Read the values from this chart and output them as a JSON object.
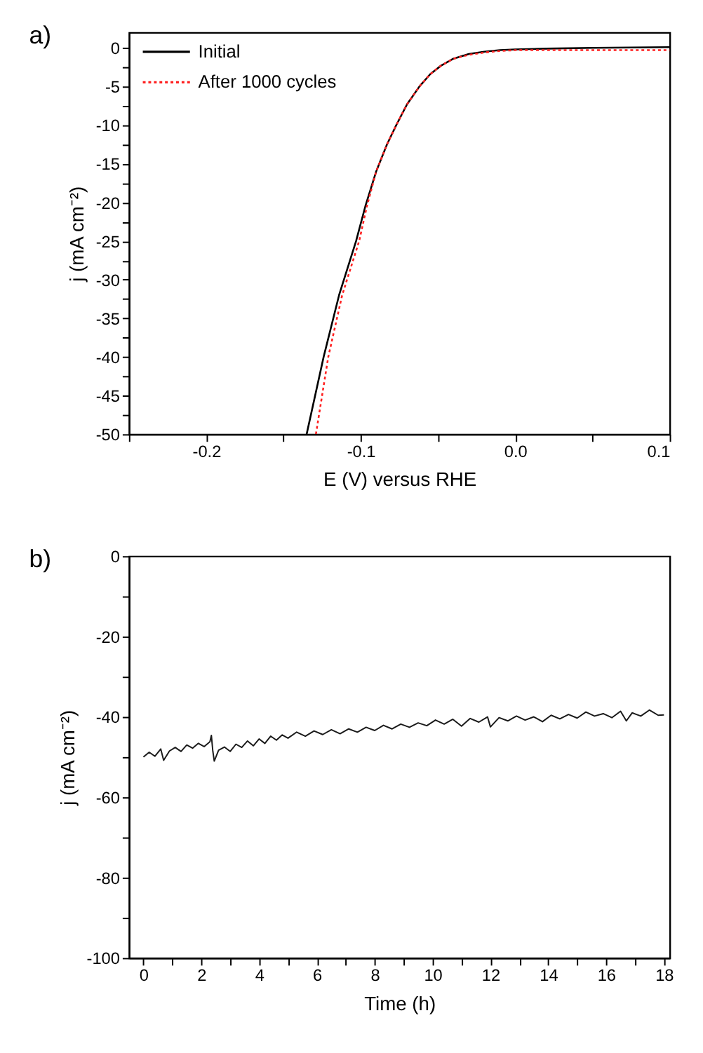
{
  "chart_data": [
    {
      "type": "line",
      "annotations": [
        "a)"
      ],
      "xlabel": "E (V) versus RHE",
      "ylabel": "j (mA cm⁻²)",
      "xlim": [
        -0.25,
        0.1
      ],
      "ylim": [
        -50,
        2
      ],
      "xticks": [
        {
          "value": -0.25,
          "label": null
        },
        -0.2,
        {
          "value": -0.15,
          "label": null
        },
        -0.1,
        {
          "value": -0.05,
          "label": null
        },
        {
          "value": 0,
          "label": "0.0"
        },
        {
          "value": 0.05,
          "label": null
        },
        0.1
      ],
      "yticks": [
        0,
        {
          "value": -2.5,
          "label": null
        },
        -5,
        {
          "value": -7.5,
          "label": null
        },
        -10,
        {
          "value": -12.5,
          "label": null
        },
        -15,
        {
          "value": -17.5,
          "label": null
        },
        -20,
        {
          "value": -22.5,
          "label": null
        },
        -25,
        {
          "value": -27.5,
          "label": null
        },
        -30,
        {
          "value": -32.5,
          "label": null
        },
        -35,
        {
          "value": -37.5,
          "label": null
        },
        -40,
        {
          "value": -42.5,
          "label": null
        },
        -45,
        {
          "value": -47.5,
          "label": null
        },
        -50
      ],
      "legend": "top left",
      "grid": false,
      "series": [
        {
          "name": "Initial",
          "color": "#000000",
          "line_style": "solid",
          "x": [
            -0.135,
            -0.124,
            -0.114,
            -0.103,
            -0.097,
            -0.09,
            -0.083,
            -0.077,
            -0.07,
            -0.062,
            -0.055,
            -0.048,
            -0.04,
            -0.03,
            -0.02,
            -0.01,
            0,
            0.02,
            0.05,
            0.1
          ],
          "values": [
            -50,
            -40,
            -32,
            -25,
            -20.5,
            -16,
            -12.5,
            -10,
            -7.3,
            -5,
            -3.4,
            -2.3,
            -1.4,
            -0.8,
            -0.5,
            -0.3,
            -0.2,
            -0.1,
            0,
            0.1
          ]
        },
        {
          "name": "After 1000 cycles",
          "color": "#ff2020",
          "line_style": "dotted",
          "x": [
            -0.129,
            -0.121,
            -0.112,
            -0.101,
            -0.096,
            -0.09,
            -0.083,
            -0.077,
            -0.07,
            -0.062,
            -0.055,
            -0.048,
            -0.04,
            -0.03,
            -0.02,
            -0.01,
            0,
            0.02,
            0.05,
            0.1
          ],
          "values": [
            -50,
            -40,
            -32,
            -25,
            -20.5,
            -16,
            -12.5,
            -10,
            -7.3,
            -5,
            -3.4,
            -2.3,
            -1.4,
            -0.9,
            -0.6,
            -0.4,
            -0.3,
            -0.3,
            -0.3,
            -0.3
          ]
        }
      ]
    },
    {
      "type": "line",
      "annotations": [
        "b)"
      ],
      "xlabel": "Time (h)",
      "ylabel": "j (mA cm⁻²)",
      "xlim": [
        -0.5,
        18.2
      ],
      "ylim": [
        -100,
        0
      ],
      "xticks": [
        0,
        {
          "value": 1,
          "label": null
        },
        2,
        {
          "value": 3,
          "label": null
        },
        4,
        {
          "value": 5,
          "label": null
        },
        6,
        {
          "value": 7,
          "label": null
        },
        8,
        {
          "value": 9,
          "label": null
        },
        10,
        {
          "value": 11,
          "label": null
        },
        12,
        {
          "value": 13,
          "label": null
        },
        14,
        {
          "value": 15,
          "label": null
        },
        16,
        {
          "value": 17,
          "label": null
        },
        18
      ],
      "yticks": [
        0,
        {
          "value": -10,
          "label": null
        },
        -20,
        {
          "value": -30,
          "label": null
        },
        -40,
        {
          "value": -50,
          "label": null
        },
        -60,
        {
          "value": -70,
          "label": null
        },
        -80,
        {
          "value": -90,
          "label": null
        },
        -100
      ],
      "grid": false,
      "series": [
        {
          "color": "#1a1a1a",
          "line_style": "solid",
          "x": [
            0,
            0.2,
            0.4,
            0.6,
            0.7,
            0.9,
            1.1,
            1.3,
            1.5,
            1.7,
            1.9,
            2.1,
            2.3,
            2.35,
            2.4,
            2.45,
            2.6,
            2.8,
            3.0,
            3.2,
            3.4,
            3.6,
            3.8,
            4.0,
            4.2,
            4.4,
            4.6,
            4.8,
            5.0,
            5.3,
            5.6,
            5.9,
            6.2,
            6.5,
            6.8,
            7.1,
            7.4,
            7.7,
            8.0,
            8.3,
            8.6,
            8.9,
            9.2,
            9.5,
            9.8,
            10.1,
            10.4,
            10.7,
            11.0,
            11.3,
            11.6,
            11.9,
            12.0,
            12.3,
            12.6,
            12.9,
            13.2,
            13.5,
            13.8,
            14.1,
            14.4,
            14.7,
            15.0,
            15.3,
            15.6,
            15.9,
            16.2,
            16.5,
            16.7,
            16.9,
            17.2,
            17.5,
            17.8,
            18.0
          ],
          "values": [
            -50,
            -48.8,
            -49.8,
            -48,
            -50.8,
            -48.5,
            -47.6,
            -48.6,
            -47,
            -47.8,
            -46.6,
            -47.4,
            -46.2,
            -44.6,
            -48.5,
            -51,
            -48.3,
            -47.5,
            -48.6,
            -46.8,
            -47.6,
            -46,
            -47.2,
            -45.5,
            -46.6,
            -44.8,
            -45.8,
            -44.5,
            -45.3,
            -43.8,
            -44.8,
            -43.5,
            -44.4,
            -43.2,
            -44.2,
            -43,
            -43.8,
            -42.6,
            -43.4,
            -42.1,
            -43,
            -41.8,
            -42.6,
            -41.5,
            -42.2,
            -40.8,
            -41.8,
            -40.6,
            -42.3,
            -40.4,
            -41.3,
            -40,
            -42.5,
            -40.2,
            -41,
            -39.8,
            -40.8,
            -40,
            -41.2,
            -39.6,
            -40.5,
            -39.4,
            -40.3,
            -38.8,
            -39.8,
            -39.2,
            -40.2,
            -38.6,
            -41,
            -39,
            -39.8,
            -38.3,
            -39.6,
            -39.5
          ]
        }
      ]
    }
  ]
}
